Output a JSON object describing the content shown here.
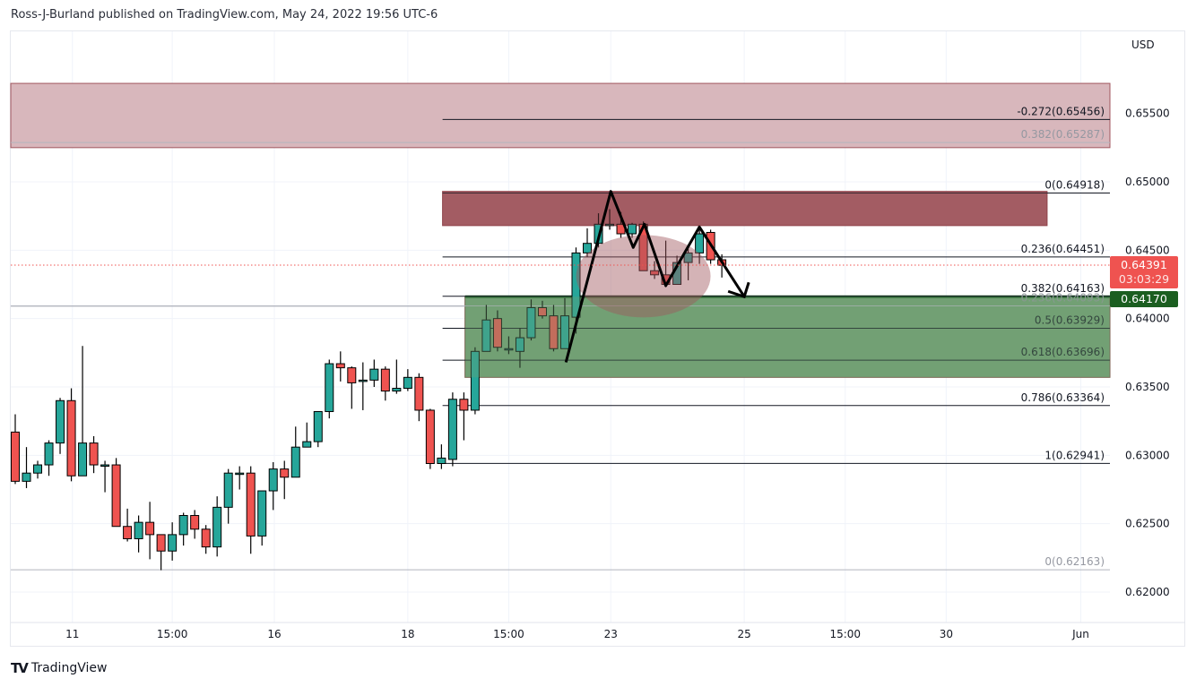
{
  "header": {
    "text": "Ross-J-Burland published on TradingView.com, May 24, 2022 19:56 UTC-6"
  },
  "footer": {
    "brand": "TradingView"
  },
  "colors": {
    "up": "#26a69a",
    "down": "#ef5350",
    "zone_top": "#d6b3b8",
    "zone_resistance": "#a0565e",
    "zone_support": "#6f9e72",
    "current": "#ef5350",
    "support_badge": "#1b5e20"
  },
  "chart_data": {
    "type": "candlestick",
    "currency_label": "USD",
    "ylim": [
      0.6175,
      0.6605
    ],
    "y_ticks": [
      "0.65500",
      "0.65000",
      "0.64500",
      "0.64000",
      "0.63500",
      "0.63000",
      "0.62500",
      "0.62000"
    ],
    "y_tick_values": [
      0.655,
      0.65,
      0.645,
      0.64,
      0.635,
      0.63,
      0.625,
      0.62
    ],
    "x_ticks": [
      {
        "label": "11",
        "index": 5.1
      },
      {
        "label": "15:00",
        "index": 14
      },
      {
        "label": "16",
        "index": 23.1
      },
      {
        "label": "18",
        "index": 35
      },
      {
        "label": "15:00",
        "index": 44
      },
      {
        "label": "23",
        "index": 53.1
      },
      {
        "label": "25",
        "index": 65
      },
      {
        "label": "15:00",
        "index": 74
      },
      {
        "label": "30",
        "index": 83
      },
      {
        "label": "Jun",
        "index": 95
      }
    ],
    "ohlc": [
      [
        0.6317,
        0.633,
        0.6279,
        0.6281
      ],
      [
        0.6281,
        0.6306,
        0.6276,
        0.6287
      ],
      [
        0.6287,
        0.6296,
        0.6283,
        0.6293
      ],
      [
        0.6293,
        0.6311,
        0.6285,
        0.6309
      ],
      [
        0.6309,
        0.6342,
        0.6301,
        0.634
      ],
      [
        0.634,
        0.6349,
        0.6281,
        0.6285
      ],
      [
        0.6285,
        0.638,
        0.6285,
        0.6309
      ],
      [
        0.6309,
        0.6314,
        0.6287,
        0.6293
      ],
      [
        0.6293,
        0.6296,
        0.6273,
        0.6293
      ],
      [
        0.6293,
        0.6298,
        0.6248,
        0.6248
      ],
      [
        0.6248,
        0.6261,
        0.6237,
        0.6239
      ],
      [
        0.6239,
        0.6256,
        0.6229,
        0.6251
      ],
      [
        0.6251,
        0.6266,
        0.6224,
        0.6242
      ],
      [
        0.6242,
        0.6242,
        0.6216,
        0.623
      ],
      [
        0.623,
        0.6251,
        0.6223,
        0.6242
      ],
      [
        0.6242,
        0.6258,
        0.6234,
        0.6256
      ],
      [
        0.6256,
        0.626,
        0.6239,
        0.6246
      ],
      [
        0.6246,
        0.6249,
        0.6228,
        0.6233
      ],
      [
        0.6233,
        0.627,
        0.6226,
        0.6262
      ],
      [
        0.6262,
        0.629,
        0.625,
        0.6287
      ],
      [
        0.6287,
        0.6292,
        0.6275,
        0.6287
      ],
      [
        0.6287,
        0.6292,
        0.6228,
        0.6241
      ],
      [
        0.6241,
        0.6274,
        0.6234,
        0.6274
      ],
      [
        0.6274,
        0.6295,
        0.626,
        0.629
      ],
      [
        0.629,
        0.6296,
        0.6268,
        0.6284
      ],
      [
        0.6284,
        0.6321,
        0.6284,
        0.6306
      ],
      [
        0.6306,
        0.6324,
        0.6306,
        0.631
      ],
      [
        0.631,
        0.6332,
        0.6306,
        0.6332
      ],
      [
        0.6332,
        0.637,
        0.6327,
        0.6367
      ],
      [
        0.6367,
        0.6376,
        0.6354,
        0.6364
      ],
      [
        0.6364,
        0.6365,
        0.6334,
        0.6353
      ],
      [
        0.6354,
        0.6368,
        0.6333,
        0.6355
      ],
      [
        0.6355,
        0.637,
        0.635,
        0.6363
      ],
      [
        0.6363,
        0.6365,
        0.634,
        0.6347
      ],
      [
        0.6347,
        0.637,
        0.6345,
        0.6349
      ],
      [
        0.6349,
        0.6363,
        0.6347,
        0.6357
      ],
      [
        0.6357,
        0.636,
        0.6325,
        0.6333
      ],
      [
        0.6333,
        0.6334,
        0.629,
        0.6294
      ],
      [
        0.6294,
        0.6308,
        0.629,
        0.6298
      ],
      [
        0.6297,
        0.6346,
        0.6292,
        0.6341
      ],
      [
        0.6341,
        0.6346,
        0.6311,
        0.6333
      ],
      [
        0.6333,
        0.6379,
        0.633,
        0.6376
      ],
      [
        0.6376,
        0.641,
        0.6376,
        0.6399
      ],
      [
        0.64,
        0.6406,
        0.6376,
        0.6379
      ],
      [
        0.6378,
        0.6387,
        0.6374,
        0.6378
      ],
      [
        0.6376,
        0.6393,
        0.6364,
        0.6386
      ],
      [
        0.6386,
        0.6414,
        0.6384,
        0.6408
      ],
      [
        0.6408,
        0.6413,
        0.64,
        0.6402
      ],
      [
        0.6402,
        0.641,
        0.6376,
        0.6378
      ],
      [
        0.6378,
        0.6415,
        0.6378,
        0.6402
      ],
      [
        0.6401,
        0.6452,
        0.6389,
        0.6448
      ],
      [
        0.6448,
        0.6466,
        0.6445,
        0.6455
      ],
      [
        0.6455,
        0.6477,
        0.6452,
        0.6469
      ],
      [
        0.6469,
        0.648,
        0.6465,
        0.6469
      ],
      [
        0.6469,
        0.6478,
        0.6459,
        0.6462
      ],
      [
        0.6462,
        0.647,
        0.6459,
        0.6469
      ],
      [
        0.6469,
        0.6471,
        0.6435,
        0.6435
      ],
      [
        0.6435,
        0.6442,
        0.6429,
        0.6432
      ],
      [
        0.6432,
        0.6457,
        0.6425,
        0.6425
      ],
      [
        0.6425,
        0.6446,
        0.6425,
        0.6441
      ],
      [
        0.6441,
        0.6451,
        0.6428,
        0.6448
      ],
      [
        0.6448,
        0.6467,
        0.644,
        0.6462
      ],
      [
        0.6463,
        0.6465,
        0.644,
        0.6443
      ],
      [
        0.6443,
        0.6447,
        0.643,
        0.6439
      ]
    ],
    "zones": [
      {
        "name": "upper-supply-zone",
        "top": 0.6572,
        "bottom": 0.6525,
        "start_index": -0.4,
        "end_index": 98
      },
      {
        "name": "resistance-zone",
        "top": 0.6493,
        "bottom": 0.6468,
        "start_index": 38.1,
        "end_index": 92
      },
      {
        "name": "support-zone",
        "top": 0.6416,
        "bottom": 0.6357,
        "start_index": 40.1,
        "end_index": 98
      }
    ],
    "fib_levels": [
      {
        "label": "-0.272(0.65456)",
        "price": 0.65456,
        "start_index": 38.1,
        "muted": false
      },
      {
        "label": "0.382(0.65287)",
        "price": 0.65287,
        "start_index": -0.4,
        "muted": true
      },
      {
        "label": "0(0.64918)",
        "price": 0.64918,
        "start_index": 38.1,
        "muted": false
      },
      {
        "label": "0.236(0.64451)",
        "price": 0.64451,
        "start_index": 38.1,
        "muted": false
      },
      {
        "label": "0.382(0.64163)",
        "price": 0.64163,
        "start_index": 38.1,
        "muted": false
      },
      {
        "label": "0.236(0.64093)",
        "price": 0.64093,
        "start_index": -0.4,
        "muted": true
      },
      {
        "label": "0.5(0.63929)",
        "price": 0.63929,
        "start_index": 38.1,
        "muted": false
      },
      {
        "label": "0.618(0.63696)",
        "price": 0.63696,
        "start_index": 38.1,
        "muted": false
      },
      {
        "label": "0.786(0.63364)",
        "price": 0.63364,
        "start_index": 38.1,
        "muted": false
      },
      {
        "label": "1(0.62941)",
        "price": 0.62941,
        "start_index": 38.1,
        "muted": false
      },
      {
        "label": "0(0.62163)",
        "price": 0.62163,
        "start_index": -0.4,
        "muted": true
      }
    ],
    "pattern_path": [
      [
        49.1,
        0.6368
      ],
      [
        53.1,
        0.6493
      ],
      [
        55.1,
        0.6452
      ],
      [
        56.1,
        0.6469
      ],
      [
        58.0,
        0.6424
      ],
      [
        61.0,
        0.6467
      ],
      [
        65.0,
        0.6416
      ]
    ],
    "current_price": {
      "value": "0.64391",
      "countdown": "03:03:29",
      "price": 0.64391
    },
    "support_badge": {
      "value": "0.64170",
      "price": 0.6417
    }
  }
}
